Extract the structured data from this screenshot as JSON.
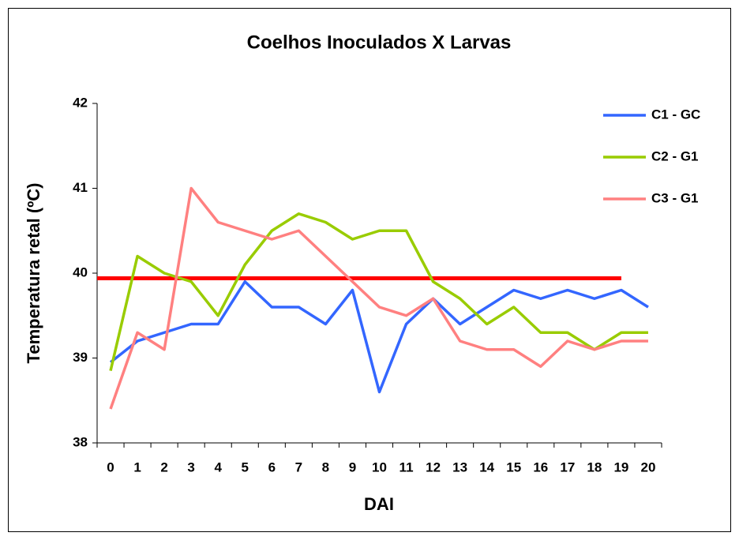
{
  "chart_data": {
    "type": "line",
    "title": "Coelhos Inoculados X Larvas",
    "x_label": "DAI",
    "y_label": "Temperatura retal (ºC)",
    "categories": [
      "0",
      "1",
      "2",
      "3",
      "4",
      "5",
      "6",
      "7",
      "8",
      "9",
      "10",
      "11",
      "12",
      "13",
      "14",
      "15",
      "16",
      "17",
      "18",
      "19",
      "20"
    ],
    "series": [
      {
        "name": "C1 - GC",
        "color": "#3366ff",
        "values": [
          38.95,
          39.2,
          39.3,
          39.4,
          39.4,
          39.9,
          39.6,
          39.6,
          39.4,
          39.8,
          38.6,
          39.4,
          39.7,
          39.4,
          39.6,
          39.8,
          39.7,
          39.8,
          39.7,
          39.8,
          39.6
        ]
      },
      {
        "name": "C2 - G1",
        "color": "#99cc00",
        "values": [
          38.85,
          40.2,
          40.0,
          39.9,
          39.5,
          40.1,
          40.5,
          40.7,
          40.6,
          40.4,
          40.5,
          40.5,
          39.9,
          39.7,
          39.4,
          39.6,
          39.3,
          39.3,
          39.1,
          39.3,
          39.3
        ]
      },
      {
        "name": "C3 - G1",
        "color": "#ff8080",
        "values": [
          38.4,
          39.3,
          39.1,
          41.0,
          40.6,
          40.5,
          40.4,
          40.5,
          40.2,
          39.9,
          39.6,
          39.5,
          39.7,
          39.2,
          39.1,
          39.1,
          38.9,
          39.2,
          39.1,
          39.2,
          39.2
        ]
      }
    ],
    "reference_line": {
      "value": 39.94,
      "color": "#ff0000"
    },
    "ylim": [
      38,
      42
    ],
    "yticks": [
      38,
      39,
      40,
      41,
      42
    ],
    "legend": "right"
  }
}
